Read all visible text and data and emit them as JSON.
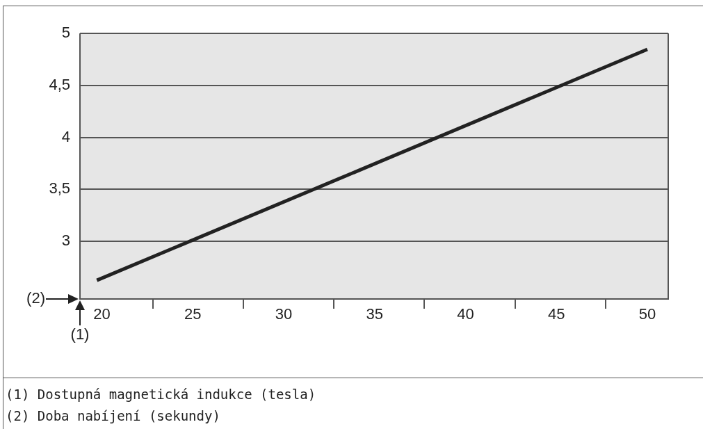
{
  "chart_data": {
    "type": "line",
    "xlabel": "(2)",
    "x": [
      19.73,
      50
    ],
    "series": [
      {
        "color": "#222222",
        "values": [
          2.625,
          4.846
        ]
      }
    ],
    "xlim": [
      18.8,
      51.15
    ],
    "ylim": [
      2.445,
      5
    ],
    "xticks": [
      20,
      {
        "value": 22.8,
        "label": null
      },
      25,
      {
        "value": 27.78,
        "label": null
      },
      30,
      {
        "value": 32.76,
        "label": null
      },
      35,
      {
        "value": 37.74,
        "label": null
      },
      40,
      {
        "value": 42.72,
        "label": null
      },
      45,
      {
        "value": 47.7,
        "label": null
      },
      50
    ],
    "yticks": [
      3,
      {
        "value": 3.5,
        "label": "3,5"
      },
      4,
      {
        "value": 4.5,
        "label": "4,5"
      },
      5
    ],
    "grid": "y",
    "legend": false,
    "marker": "none",
    "line_style": "solid",
    "annotations": [
      "(1)",
      "(1) Dostupná magnetická indukce (tesla)",
      "(2) Doba nabíjení (sekundy)"
    ]
  }
}
